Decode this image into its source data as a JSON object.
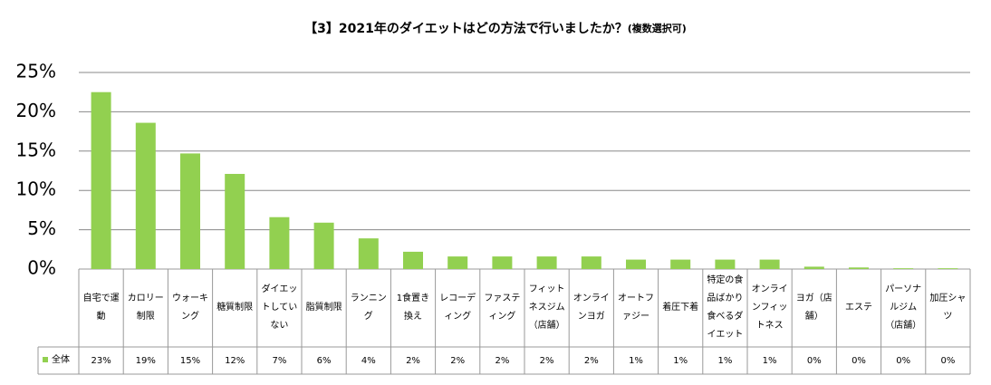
{
  "chart_data": {
    "type": "bar",
    "title": "【3】2021年のダイエットはどの方法で行いましたか？",
    "title_note": "(複数選択可)",
    "categories": [
      "自宅で運動",
      "カロリー制限",
      "ウォーキング",
      "糖質制限",
      "ダイエットしていない",
      "脂質制限",
      "ランニング",
      "1食置き換え",
      "レコーディング",
      "ファスティング",
      "フィットネスジム（店舗）",
      "オンラインヨガ",
      "オートファジー",
      "着圧下着",
      "特定の食品ばかり食べるダイエット",
      "オンラインフィットネス",
      "ヨガ（店舗）",
      "エステ",
      "パーソナルジム（店舗）",
      "加圧シャツ"
    ],
    "series": [
      {
        "name": "全体",
        "color": "#92d050",
        "values": [
          22.5,
          18.6,
          14.7,
          12.1,
          6.6,
          5.9,
          3.9,
          2.2,
          1.6,
          1.6,
          1.6,
          1.6,
          1.2,
          1.2,
          1.2,
          1.2,
          0.3,
          0.2,
          0.1,
          0.1
        ],
        "value_labels": [
          "23%",
          "19%",
          "15%",
          "12%",
          "7%",
          "6%",
          "4%",
          "2%",
          "2%",
          "2%",
          "2%",
          "2%",
          "1%",
          "1%",
          "1%",
          "1%",
          "0%",
          "0%",
          "0%",
          "0%"
        ]
      }
    ],
    "ylim": [
      0,
      25
    ],
    "yticks": [
      {
        "value": 0,
        "label": "0%"
      },
      {
        "value": 5,
        "label": "5%"
      },
      {
        "value": 10,
        "label": "10%"
      },
      {
        "value": 15,
        "label": "15%"
      },
      {
        "value": 20,
        "label": "20%"
      },
      {
        "value": 25,
        "label": "25%"
      }
    ],
    "grid": true
  }
}
